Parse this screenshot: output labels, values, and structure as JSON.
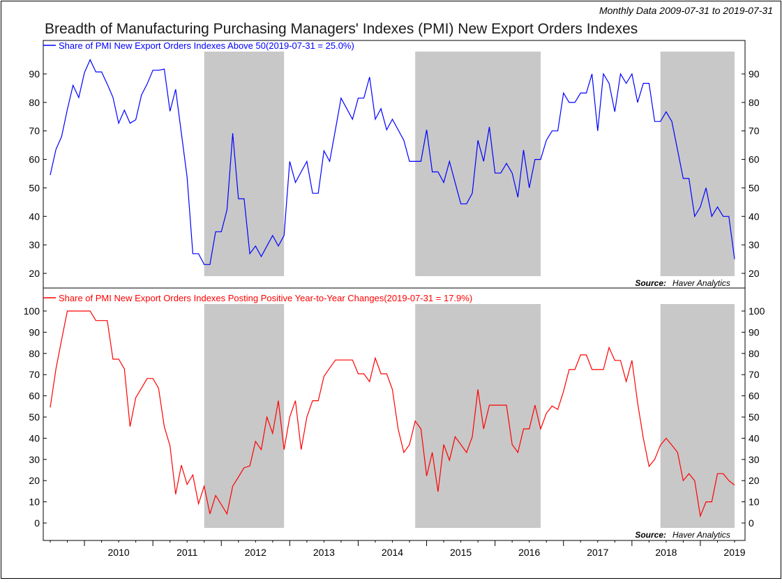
{
  "header": {
    "date_range": "Monthly Data 2009-07-31 to 2019-07-31",
    "title": "Breadth of Manufacturing Purchasing Managers' Indexes (PMI) New Export Orders Indexes"
  },
  "source_label": "Source:",
  "source_name": "Haver Analytics",
  "colors": {
    "top_series": "#0000ff",
    "bottom_series": "#ff0000",
    "recession_shade": "#c8c8c8"
  },
  "chart_data": [
    {
      "type": "line",
      "panel": "top",
      "legend": "Share of PMI New Export Orders Indexes Above 50(2019-07-31 = 25.0%)",
      "x_range": [
        "2009-07",
        "2019-07"
      ],
      "x_ticks": [
        "2010",
        "2011",
        "2012",
        "2013",
        "2014",
        "2015",
        "2016",
        "2017",
        "2018",
        "2019"
      ],
      "y_ticks": [
        20,
        30,
        40,
        50,
        60,
        70,
        80,
        90
      ],
      "ylim": [
        17,
        99
      ],
      "shaded_periods": [
        [
          "2011-10",
          "2012-12"
        ],
        [
          "2014-11",
          "2016-09"
        ],
        [
          "2018-06",
          "2019-07"
        ]
      ],
      "grid": false,
      "series": [
        {
          "x": [
            "2009-07",
            "2009-08",
            "2009-09",
            "2009-10",
            "2009-11",
            "2009-12",
            "2010-01",
            "2010-02",
            "2010-03",
            "2010-04",
            "2010-05",
            "2010-06",
            "2010-07",
            "2010-08",
            "2010-09",
            "2010-10",
            "2010-11",
            "2010-12",
            "2011-01",
            "2011-02",
            "2011-03",
            "2011-04",
            "2011-05",
            "2011-06",
            "2011-07",
            "2011-08",
            "2011-09",
            "2011-10",
            "2011-11",
            "2011-12",
            "2012-01",
            "2012-02",
            "2012-03",
            "2012-04",
            "2012-05",
            "2012-06",
            "2012-07",
            "2012-08",
            "2012-09",
            "2012-10",
            "2012-11",
            "2012-12",
            "2013-01",
            "2013-02",
            "2013-03",
            "2013-04",
            "2013-05",
            "2013-06",
            "2013-07",
            "2013-08",
            "2013-09",
            "2013-10",
            "2013-11",
            "2013-12",
            "2014-01",
            "2014-02",
            "2014-03",
            "2014-04",
            "2014-05",
            "2014-06",
            "2014-07",
            "2014-08",
            "2014-09",
            "2014-10",
            "2014-11",
            "2014-12",
            "2015-01",
            "2015-02",
            "2015-03",
            "2015-04",
            "2015-05",
            "2015-06",
            "2015-07",
            "2015-08",
            "2015-09",
            "2015-10",
            "2015-11",
            "2015-12",
            "2016-01",
            "2016-02",
            "2016-03",
            "2016-04",
            "2016-05",
            "2016-06",
            "2016-07",
            "2016-08",
            "2016-09",
            "2016-10",
            "2016-11",
            "2016-12",
            "2017-01",
            "2017-02",
            "2017-03",
            "2017-04",
            "2017-05",
            "2017-06",
            "2017-07",
            "2017-08",
            "2017-09",
            "2017-10",
            "2017-11",
            "2017-12",
            "2018-01",
            "2018-02",
            "2018-03",
            "2018-04",
            "2018-05",
            "2018-06",
            "2018-07",
            "2018-08",
            "2018-09",
            "2018-10",
            "2018-11",
            "2018-12",
            "2019-01",
            "2019-02",
            "2019-03",
            "2019-04",
            "2019-05",
            "2019-06",
            "2019-07"
          ],
          "values": [
            54.5,
            63.5,
            68,
            77.5,
            86,
            81.7,
            90.5,
            95,
            90.7,
            90.7,
            86.4,
            81.8,
            72.7,
            77.3,
            72.7,
            73.9,
            82.6,
            86.5,
            91.3,
            91.3,
            91.7,
            76.9,
            84.6,
            69.2,
            53.8,
            26.9,
            26.9,
            23.1,
            23.1,
            34.6,
            34.6,
            42.3,
            69.2,
            46.2,
            46.2,
            26.9,
            29.6,
            25.9,
            29.6,
            33.3,
            29.6,
            33.3,
            59.3,
            51.9,
            55.6,
            59.3,
            48.1,
            48.1,
            63,
            59.3,
            70.4,
            81.5,
            77.8,
            74.1,
            81.5,
            81.5,
            88.9,
            74.1,
            77.8,
            70.4,
            74.1,
            70.4,
            66.7,
            59.3,
            59.3,
            59.3,
            70.4,
            55.6,
            55.6,
            51.9,
            59.3,
            51.9,
            44.4,
            44.4,
            48.1,
            66.7,
            59.3,
            71.4,
            55.2,
            55.2,
            58.6,
            55.2,
            46.7,
            63.3,
            50,
            60,
            60,
            66.7,
            70,
            70,
            83.3,
            80,
            80,
            83.3,
            83.3,
            90,
            70,
            90,
            86.7,
            76.7,
            90,
            86.7,
            90,
            80,
            86.7,
            86.7,
            73.3,
            73.3,
            76.7,
            73.3,
            63.3,
            53.3,
            53.3,
            40,
            43.3,
            50,
            40,
            43.3,
            40,
            40,
            25
          ]
        }
      ]
    },
    {
      "type": "line",
      "panel": "bottom",
      "legend": "Share of PMI New Export Orders Indexes Posting Positive Year-to-Year Changes(2019-07-31 = 17.9%)",
      "x_range": [
        "2009-07",
        "2019-07"
      ],
      "x_ticks": [
        "2010",
        "2011",
        "2012",
        "2013",
        "2014",
        "2015",
        "2016",
        "2017",
        "2018",
        "2019"
      ],
      "y_ticks": [
        0,
        10,
        20,
        30,
        40,
        50,
        60,
        70,
        80,
        90,
        100
      ],
      "ylim": [
        -6.6,
        104
      ],
      "shaded_periods": [
        [
          "2011-10",
          "2012-12"
        ],
        [
          "2014-11",
          "2016-09"
        ],
        [
          "2018-06",
          "2019-07"
        ]
      ],
      "grid": false,
      "series": [
        {
          "x": [
            "2009-07",
            "2009-08",
            "2009-09",
            "2009-10",
            "2009-11",
            "2009-12",
            "2010-01",
            "2010-02",
            "2010-03",
            "2010-04",
            "2010-05",
            "2010-06",
            "2010-07",
            "2010-08",
            "2010-09",
            "2010-10",
            "2010-11",
            "2010-12",
            "2011-01",
            "2011-02",
            "2011-03",
            "2011-04",
            "2011-05",
            "2011-06",
            "2011-07",
            "2011-08",
            "2011-09",
            "2011-10",
            "2011-11",
            "2011-12",
            "2012-01",
            "2012-02",
            "2012-03",
            "2012-04",
            "2012-05",
            "2012-06",
            "2012-07",
            "2012-08",
            "2012-09",
            "2012-10",
            "2012-11",
            "2012-12",
            "2013-01",
            "2013-02",
            "2013-03",
            "2013-04",
            "2013-05",
            "2013-06",
            "2013-07",
            "2013-08",
            "2013-09",
            "2013-10",
            "2013-11",
            "2013-12",
            "2014-01",
            "2014-02",
            "2014-03",
            "2014-04",
            "2014-05",
            "2014-06",
            "2014-07",
            "2014-08",
            "2014-09",
            "2014-10",
            "2014-11",
            "2014-12",
            "2015-01",
            "2015-02",
            "2015-03",
            "2015-04",
            "2015-05",
            "2015-06",
            "2015-07",
            "2015-08",
            "2015-09",
            "2015-10",
            "2015-11",
            "2015-12",
            "2016-01",
            "2016-02",
            "2016-03",
            "2016-04",
            "2016-05",
            "2016-06",
            "2016-07",
            "2016-08",
            "2016-09",
            "2016-10",
            "2016-11",
            "2016-12",
            "2017-01",
            "2017-02",
            "2017-03",
            "2017-04",
            "2017-05",
            "2017-06",
            "2017-07",
            "2017-08",
            "2017-09",
            "2017-10",
            "2017-11",
            "2017-12",
            "2018-01",
            "2018-02",
            "2018-03",
            "2018-04",
            "2018-05",
            "2018-06",
            "2018-07",
            "2018-08",
            "2018-09",
            "2018-10",
            "2018-11",
            "2018-12",
            "2019-01",
            "2019-02",
            "2019-03",
            "2019-04",
            "2019-05",
            "2019-06",
            "2019-07"
          ],
          "values": [
            54.5,
            72.7,
            86.4,
            100,
            100,
            100,
            100,
            100,
            95.5,
            95.5,
            95.5,
            77.3,
            77.3,
            72.7,
            45.5,
            59.1,
            63.6,
            68.2,
            68.2,
            63.6,
            45.5,
            36.4,
            13.6,
            27.3,
            18.2,
            22.7,
            9.1,
            17.4,
            4.3,
            13,
            8.7,
            4.3,
            17.4,
            21.7,
            26.1,
            26.9,
            38.5,
            34.6,
            50,
            42.3,
            57.7,
            34.6,
            50,
            57.7,
            34.6,
            50,
            57.7,
            57.7,
            69.2,
            73.1,
            76.9,
            76.9,
            76.9,
            76.9,
            70.4,
            70.4,
            66.7,
            77.8,
            70.4,
            70.4,
            63,
            44.4,
            33.3,
            37,
            48.1,
            44.4,
            22.2,
            33.3,
            14.8,
            37,
            29.6,
            40.7,
            37,
            33.3,
            40.7,
            63,
            44.4,
            55.6,
            55.6,
            55.6,
            55.6,
            37,
            33.3,
            44.4,
            44.4,
            55.6,
            44.4,
            51.7,
            55.2,
            53.6,
            62.1,
            72.4,
            72.4,
            79.3,
            79.3,
            72.4,
            72.4,
            72.4,
            82.8,
            76.7,
            76.7,
            66.7,
            76.7,
            56.7,
            40,
            26.7,
            30,
            36.7,
            40,
            36.7,
            33.3,
            20,
            23.3,
            20,
            3.3,
            10,
            10,
            23.3,
            23.3,
            20,
            17.9
          ]
        }
      ]
    }
  ]
}
